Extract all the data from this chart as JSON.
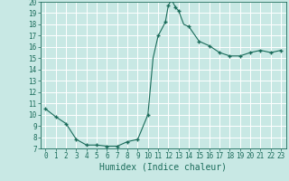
{
  "xlabel": "Humidex (Indice chaleur)",
  "background_color": "#c8e8e4",
  "grid_color": "#ffffff",
  "line_color": "#1a6b5a",
  "marker_color": "#1a6b5a",
  "xlim": [
    -0.5,
    23.5
  ],
  "ylim": [
    7,
    20
  ],
  "yticks": [
    7,
    8,
    9,
    10,
    11,
    12,
    13,
    14,
    15,
    16,
    17,
    18,
    19,
    20
  ],
  "xticks": [
    0,
    1,
    2,
    3,
    4,
    5,
    6,
    7,
    8,
    9,
    10,
    11,
    12,
    13,
    14,
    15,
    16,
    17,
    18,
    19,
    20,
    21,
    22,
    23
  ],
  "x": [
    0,
    1,
    2,
    3,
    4,
    5,
    6,
    7,
    8,
    9,
    10,
    10.5,
    11,
    11.3,
    11.7,
    12,
    12.3,
    12.7,
    13,
    13.5,
    14,
    15,
    16,
    17,
    18,
    19,
    20,
    21,
    22,
    23
  ],
  "y": [
    10.5,
    9.8,
    9.2,
    7.8,
    7.3,
    7.3,
    7.2,
    7.2,
    7.6,
    7.8,
    10.0,
    15.0,
    17.0,
    17.5,
    18.2,
    19.7,
    20.2,
    19.5,
    19.2,
    18.0,
    17.8,
    16.5,
    16.1,
    15.5,
    15.2,
    15.2,
    15.5,
    15.7,
    15.5,
    15.7
  ],
  "marker_x": [
    0,
    1,
    2,
    3,
    4,
    5,
    6,
    7,
    8,
    9,
    10,
    11,
    11.7,
    12,
    12.7,
    13,
    14,
    15,
    16,
    17,
    18,
    19,
    20,
    21,
    22,
    23
  ],
  "marker_y": [
    10.5,
    9.8,
    9.2,
    7.8,
    7.3,
    7.3,
    7.2,
    7.2,
    7.6,
    7.8,
    10.0,
    17.0,
    18.2,
    19.7,
    19.5,
    19.2,
    17.8,
    16.5,
    16.1,
    15.5,
    15.2,
    15.2,
    15.5,
    15.7,
    15.5,
    15.7
  ],
  "font_family": "monospace",
  "xlabel_fontsize": 7,
  "tick_fontsize": 5.5
}
